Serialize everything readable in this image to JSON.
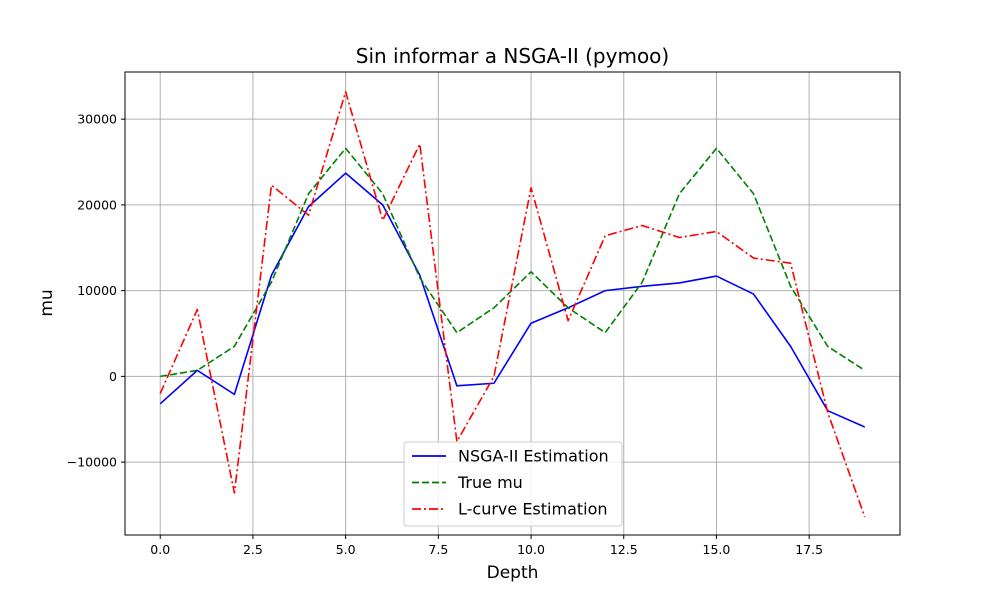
{
  "chart_data": {
    "type": "line",
    "title": "Sin informar a NSGA-II (pymoo)",
    "xlabel": "Depth",
    "ylabel": "mu",
    "xlim": [
      -0.95,
      19.95
    ],
    "ylim": [
      -18500,
      35500
    ],
    "grid": true,
    "legend_position": "bottom-center",
    "xticks": [
      0.0,
      2.5,
      5.0,
      7.5,
      10.0,
      12.5,
      15.0,
      17.5
    ],
    "xtick_labels": [
      "0.0",
      "2.5",
      "5.0",
      "7.5",
      "10.0",
      "12.5",
      "15.0",
      "17.5"
    ],
    "yticks": [
      -10000,
      0,
      10000,
      20000,
      30000
    ],
    "ytick_labels": [
      "−10000",
      "0",
      "10000",
      "20000",
      "30000"
    ],
    "x": [
      0,
      1,
      2,
      3,
      4,
      5,
      6,
      7,
      8,
      9,
      10,
      11,
      12,
      13,
      14,
      15,
      16,
      17,
      18,
      19
    ],
    "series": [
      {
        "name": "NSGA-II Estimation",
        "color": "#0000ff",
        "style": "solid",
        "values": [
          -3200,
          700,
          -2100,
          11800,
          19800,
          23700,
          20000,
          11800,
          -1100,
          -800,
          6200,
          8000,
          10000,
          10500,
          10900,
          11700,
          9600,
          3500,
          -4000,
          -5900
        ]
      },
      {
        "name": "True mu",
        "color": "#008000",
        "style": "dashed",
        "values": [
          0,
          700,
          3500,
          11000,
          21300,
          26600,
          21300,
          11500,
          5100,
          8000,
          12200,
          8000,
          5100,
          11000,
          21300,
          26600,
          21300,
          10500,
          3500,
          700
        ]
      },
      {
        "name": "L-curve Estimation",
        "color": "#ff0000",
        "style": "dashdot",
        "values": [
          -2000,
          7800,
          -13600,
          22300,
          18800,
          33200,
          18200,
          27100,
          -7600,
          0,
          22000,
          6500,
          16400,
          17600,
          16200,
          16900,
          13800,
          13200,
          -4200,
          -16400
        ]
      }
    ]
  }
}
